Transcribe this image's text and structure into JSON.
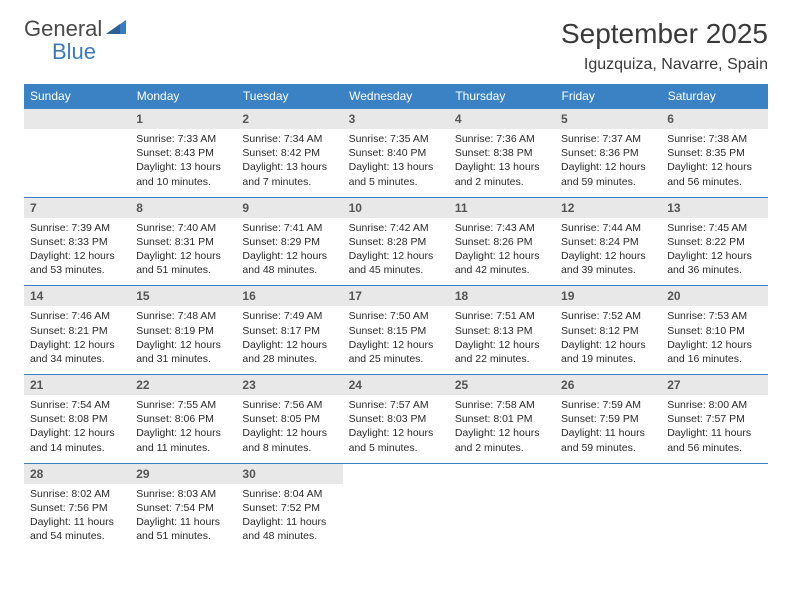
{
  "logo": {
    "word1": "General",
    "word2": "Blue"
  },
  "title": {
    "month": "September 2025",
    "location": "Iguzquiza, Navarre, Spain"
  },
  "colors": {
    "header_bg": "#3b82c4",
    "header_fg": "#ffffff",
    "daynum_bg": "#e8e8e8",
    "daynum_fg": "#555555",
    "body_fg": "#2a2a2a",
    "row_border": "#3b82c4",
    "logo_gray": "#4a4a4a",
    "logo_blue": "#3b7bbf",
    "title_fg": "#3a3a3a",
    "page_bg": "#ffffff"
  },
  "typography": {
    "title_month_pt": 28,
    "title_loc_pt": 16,
    "weekday_pt": 12,
    "daynum_pt": 12,
    "body_pt": 10.5,
    "logo_pt": 22
  },
  "weekdays": [
    "Sunday",
    "Monday",
    "Tuesday",
    "Wednesday",
    "Thursday",
    "Friday",
    "Saturday"
  ],
  "first_weekday_index": 1,
  "days": [
    {
      "n": 1,
      "sunrise": "7:33 AM",
      "sunset": "8:43 PM",
      "daylight": "13 hours and 10 minutes."
    },
    {
      "n": 2,
      "sunrise": "7:34 AM",
      "sunset": "8:42 PM",
      "daylight": "13 hours and 7 minutes."
    },
    {
      "n": 3,
      "sunrise": "7:35 AM",
      "sunset": "8:40 PM",
      "daylight": "13 hours and 5 minutes."
    },
    {
      "n": 4,
      "sunrise": "7:36 AM",
      "sunset": "8:38 PM",
      "daylight": "13 hours and 2 minutes."
    },
    {
      "n": 5,
      "sunrise": "7:37 AM",
      "sunset": "8:36 PM",
      "daylight": "12 hours and 59 minutes."
    },
    {
      "n": 6,
      "sunrise": "7:38 AM",
      "sunset": "8:35 PM",
      "daylight": "12 hours and 56 minutes."
    },
    {
      "n": 7,
      "sunrise": "7:39 AM",
      "sunset": "8:33 PM",
      "daylight": "12 hours and 53 minutes."
    },
    {
      "n": 8,
      "sunrise": "7:40 AM",
      "sunset": "8:31 PM",
      "daylight": "12 hours and 51 minutes."
    },
    {
      "n": 9,
      "sunrise": "7:41 AM",
      "sunset": "8:29 PM",
      "daylight": "12 hours and 48 minutes."
    },
    {
      "n": 10,
      "sunrise": "7:42 AM",
      "sunset": "8:28 PM",
      "daylight": "12 hours and 45 minutes."
    },
    {
      "n": 11,
      "sunrise": "7:43 AM",
      "sunset": "8:26 PM",
      "daylight": "12 hours and 42 minutes."
    },
    {
      "n": 12,
      "sunrise": "7:44 AM",
      "sunset": "8:24 PM",
      "daylight": "12 hours and 39 minutes."
    },
    {
      "n": 13,
      "sunrise": "7:45 AM",
      "sunset": "8:22 PM",
      "daylight": "12 hours and 36 minutes."
    },
    {
      "n": 14,
      "sunrise": "7:46 AM",
      "sunset": "8:21 PM",
      "daylight": "12 hours and 34 minutes."
    },
    {
      "n": 15,
      "sunrise": "7:48 AM",
      "sunset": "8:19 PM",
      "daylight": "12 hours and 31 minutes."
    },
    {
      "n": 16,
      "sunrise": "7:49 AM",
      "sunset": "8:17 PM",
      "daylight": "12 hours and 28 minutes."
    },
    {
      "n": 17,
      "sunrise": "7:50 AM",
      "sunset": "8:15 PM",
      "daylight": "12 hours and 25 minutes."
    },
    {
      "n": 18,
      "sunrise": "7:51 AM",
      "sunset": "8:13 PM",
      "daylight": "12 hours and 22 minutes."
    },
    {
      "n": 19,
      "sunrise": "7:52 AM",
      "sunset": "8:12 PM",
      "daylight": "12 hours and 19 minutes."
    },
    {
      "n": 20,
      "sunrise": "7:53 AM",
      "sunset": "8:10 PM",
      "daylight": "12 hours and 16 minutes."
    },
    {
      "n": 21,
      "sunrise": "7:54 AM",
      "sunset": "8:08 PM",
      "daylight": "12 hours and 14 minutes."
    },
    {
      "n": 22,
      "sunrise": "7:55 AM",
      "sunset": "8:06 PM",
      "daylight": "12 hours and 11 minutes."
    },
    {
      "n": 23,
      "sunrise": "7:56 AM",
      "sunset": "8:05 PM",
      "daylight": "12 hours and 8 minutes."
    },
    {
      "n": 24,
      "sunrise": "7:57 AM",
      "sunset": "8:03 PM",
      "daylight": "12 hours and 5 minutes."
    },
    {
      "n": 25,
      "sunrise": "7:58 AM",
      "sunset": "8:01 PM",
      "daylight": "12 hours and 2 minutes."
    },
    {
      "n": 26,
      "sunrise": "7:59 AM",
      "sunset": "7:59 PM",
      "daylight": "11 hours and 59 minutes."
    },
    {
      "n": 27,
      "sunrise": "8:00 AM",
      "sunset": "7:57 PM",
      "daylight": "11 hours and 56 minutes."
    },
    {
      "n": 28,
      "sunrise": "8:02 AM",
      "sunset": "7:56 PM",
      "daylight": "11 hours and 54 minutes."
    },
    {
      "n": 29,
      "sunrise": "8:03 AM",
      "sunset": "7:54 PM",
      "daylight": "11 hours and 51 minutes."
    },
    {
      "n": 30,
      "sunrise": "8:04 AM",
      "sunset": "7:52 PM",
      "daylight": "11 hours and 48 minutes."
    }
  ],
  "labels": {
    "sunrise": "Sunrise:",
    "sunset": "Sunset:",
    "daylight": "Daylight:"
  }
}
